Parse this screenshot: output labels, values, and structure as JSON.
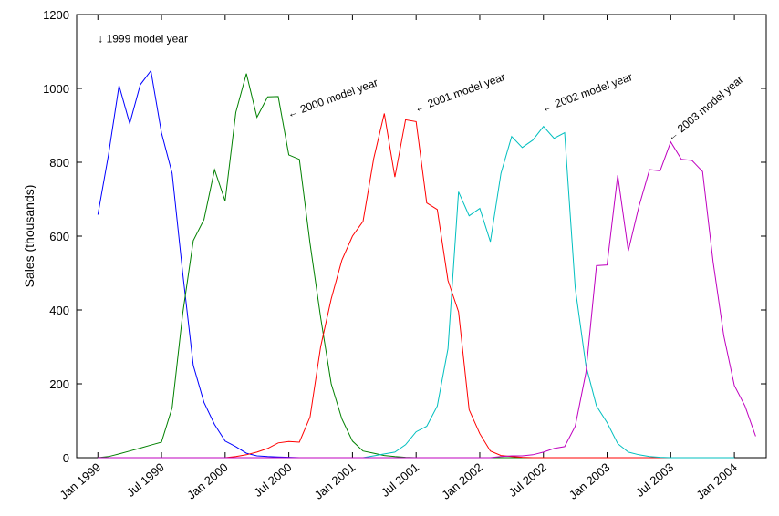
{
  "chart_data": {
    "type": "line",
    "title": "",
    "xlabel": "",
    "ylabel": "Sales (thousands)",
    "xlim": [
      "1998-11",
      "2004-04"
    ],
    "ylim": [
      0,
      1200
    ],
    "yticks": [
      0,
      200,
      400,
      600,
      800,
      1000,
      1200
    ],
    "xticks": [
      {
        "label": "Jan 1999",
        "date": "1999-01"
      },
      {
        "label": "Jul 1999",
        "date": "1999-07"
      },
      {
        "label": "Jan 2000",
        "date": "2000-01"
      },
      {
        "label": "Jul 2000",
        "date": "2000-07"
      },
      {
        "label": "Jan 2001",
        "date": "2001-01"
      },
      {
        "label": "Jul 2001",
        "date": "2001-07"
      },
      {
        "label": "Jan 2002",
        "date": "2002-01"
      },
      {
        "label": "Jul 2002",
        "date": "2002-07"
      },
      {
        "label": "Jan 2003",
        "date": "2003-01"
      },
      {
        "label": "Jul 2003",
        "date": "2003-07"
      },
      {
        "label": "Jan 2004",
        "date": "2004-01"
      }
    ],
    "grid": false,
    "legend": "none",
    "series": [
      {
        "color": "#0000ff",
        "start": "1999-01",
        "values": [
          658,
          820,
          1008,
          905,
          1010,
          1048,
          880,
          770,
          500,
          250,
          150,
          90,
          45,
          30,
          12,
          5,
          3,
          2,
          1,
          0,
          0,
          0,
          0,
          0,
          0,
          0,
          0,
          0,
          0,
          0,
          0,
          0,
          0,
          0,
          0,
          0,
          0,
          0,
          0,
          0,
          0,
          0,
          0,
          0,
          0,
          0,
          0,
          0,
          0,
          0,
          0,
          0,
          0,
          0,
          0,
          0,
          0,
          0,
          0,
          0,
          0
        ]
      },
      {
        "color": "#008000",
        "start": "1999-01",
        "values": [
          0,
          3,
          10,
          18,
          26,
          34,
          42,
          135,
          390,
          588,
          645,
          780,
          695,
          935,
          1040,
          922,
          977,
          978,
          820,
          808,
          580,
          380,
          200,
          105,
          45,
          18,
          12,
          6,
          3,
          1,
          0,
          0,
          0,
          0,
          0,
          0,
          0,
          0,
          0,
          0,
          0,
          0,
          0,
          0,
          0,
          0,
          0,
          0,
          0,
          0,
          0,
          0,
          0,
          0,
          0,
          0,
          0,
          0,
          0,
          0,
          0
        ]
      },
      {
        "color": "#ff0000",
        "start": "1999-01",
        "values": [
          0,
          0,
          0,
          0,
          0,
          0,
          0,
          0,
          0,
          0,
          0,
          0,
          0,
          3,
          8,
          15,
          25,
          40,
          44,
          42,
          110,
          300,
          430,
          535,
          600,
          640,
          810,
          932,
          760,
          915,
          910,
          690,
          672,
          480,
          395,
          130,
          65,
          18,
          6,
          3,
          1,
          0,
          0,
          0,
          0,
          0,
          0,
          0,
          0,
          0,
          0,
          0,
          0,
          0,
          0,
          0,
          0,
          0,
          0,
          0,
          0
        ]
      },
      {
        "color": "#00bfbf",
        "start": "1999-01",
        "values": [
          0,
          0,
          0,
          0,
          0,
          0,
          0,
          0,
          0,
          0,
          0,
          0,
          0,
          0,
          0,
          0,
          0,
          0,
          0,
          0,
          0,
          0,
          0,
          0,
          0,
          0,
          5,
          10,
          15,
          35,
          70,
          85,
          140,
          295,
          720,
          655,
          675,
          585,
          770,
          870,
          840,
          860,
          897,
          865,
          880,
          460,
          250,
          140,
          95,
          38,
          15,
          8,
          3,
          1,
          0,
          0,
          0,
          0,
          0,
          0,
          0
        ]
      },
      {
        "color": "#bf00bf",
        "start": "1999-01",
        "values": [
          0,
          0,
          0,
          0,
          0,
          0,
          0,
          0,
          0,
          0,
          0,
          0,
          0,
          0,
          0,
          0,
          0,
          0,
          0,
          0,
          0,
          0,
          0,
          0,
          0,
          0,
          0,
          0,
          0,
          0,
          0,
          0,
          0,
          0,
          0,
          0,
          0,
          0,
          3,
          5,
          5,
          8,
          15,
          25,
          30,
          85,
          230,
          520,
          522,
          765,
          560,
          680,
          780,
          777,
          855,
          808,
          805,
          775,
          530,
          330,
          195,
          140,
          58
        ]
      }
    ],
    "annotations": [
      {
        "text": "↓ 1999 model year",
        "date": "1999-01",
        "value": 1125,
        "angle": 0
      },
      {
        "text": "← 2000 model year",
        "date": "2000-07",
        "value": 920,
        "angle": -20
      },
      {
        "text": "← 2001 model year",
        "date": "2001-07",
        "value": 935,
        "angle": -20
      },
      {
        "text": "← 2002 model year",
        "date": "2002-07",
        "value": 935,
        "angle": -20
      },
      {
        "text": "← 2003 model year",
        "date": "2003-07",
        "value": 855,
        "angle": -40
      }
    ]
  }
}
